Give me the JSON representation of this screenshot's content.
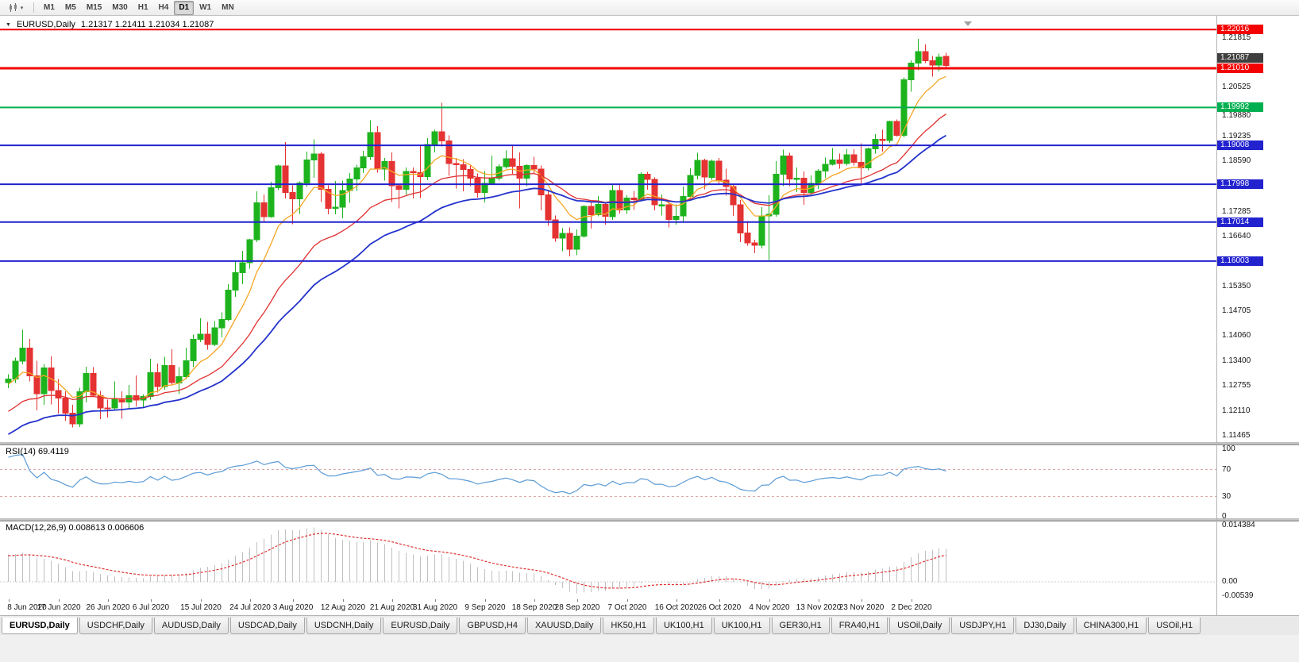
{
  "toolbar": {
    "timeframes": [
      "M1",
      "M5",
      "M15",
      "M30",
      "H1",
      "H4",
      "D1",
      "W1",
      "MN"
    ],
    "active_timeframe": "D1"
  },
  "chart": {
    "title": "EURUSD,Daily",
    "ohlc": "1.21317 1.21411 1.21034 1.21087"
  },
  "colors": {
    "bull": "#1db31d",
    "bear": "#e53232",
    "ma_fast": "#f5a623",
    "ma_mid": "#e03030",
    "ma_slow": "#2433cc",
    "line_red": "#f40000",
    "line_green": "#00b050",
    "line_blue": "#2222cf",
    "rsi": "#5b9bd5",
    "rsi_level": "#dcaaaa",
    "macd_hist": "#c0c0c0",
    "macd_signal": "#e03030",
    "current_label_bg": "#3f3f3f"
  },
  "chart_data": {
    "type": "candlestick",
    "symbol": "EURUSD",
    "timeframe": "Daily",
    "last_ohlc": {
      "open": "1.21317",
      "high": "1.21411",
      "low": "1.21034",
      "close": "1.21087"
    },
    "candles": [
      [
        1.1285,
        1.1306,
        1.127,
        1.1294
      ],
      [
        1.1294,
        1.1349,
        1.1284,
        1.134
      ],
      [
        1.134,
        1.1422,
        1.1332,
        1.1374
      ],
      [
        1.1374,
        1.1398,
        1.1288,
        1.1302
      ],
      [
        1.1302,
        1.1341,
        1.1212,
        1.1256
      ],
      [
        1.1256,
        1.1333,
        1.1227,
        1.1323
      ],
      [
        1.1323,
        1.1353,
        1.1228,
        1.1264
      ],
      [
        1.1264,
        1.1294,
        1.1204,
        1.1244
      ],
      [
        1.1244,
        1.1262,
        1.1186,
        1.1205
      ],
      [
        1.1205,
        1.1227,
        1.1168,
        1.1177
      ],
      [
        1.1177,
        1.1271,
        1.1169,
        1.1261
      ],
      [
        1.1261,
        1.1326,
        1.1233,
        1.1308
      ],
      [
        1.1308,
        1.1325,
        1.1248,
        1.1251
      ],
      [
        1.1251,
        1.1263,
        1.119,
        1.1219
      ],
      [
        1.1219,
        1.124,
        1.1194,
        1.1218
      ],
      [
        1.1218,
        1.1288,
        1.1214,
        1.1242
      ],
      [
        1.1242,
        1.1262,
        1.1191,
        1.1234
      ],
      [
        1.1234,
        1.1278,
        1.1218,
        1.1251
      ],
      [
        1.1251,
        1.1303,
        1.1223,
        1.1239
      ],
      [
        1.1239,
        1.1254,
        1.1219,
        1.1248
      ],
      [
        1.1248,
        1.1346,
        1.124,
        1.131
      ],
      [
        1.131,
        1.1334,
        1.1259,
        1.1274
      ],
      [
        1.1274,
        1.1352,
        1.1266,
        1.1329
      ],
      [
        1.1329,
        1.1371,
        1.1277,
        1.1284
      ],
      [
        1.1284,
        1.1325,
        1.1255,
        1.13
      ],
      [
        1.13,
        1.1375,
        1.1294,
        1.1341
      ],
      [
        1.1341,
        1.1409,
        1.1325,
        1.1397
      ],
      [
        1.1397,
        1.1452,
        1.139,
        1.141
      ],
      [
        1.141,
        1.1442,
        1.137,
        1.1384
      ],
      [
        1.1384,
        1.1444,
        1.1379,
        1.1427
      ],
      [
        1.1427,
        1.1467,
        1.1402,
        1.1448
      ],
      [
        1.1448,
        1.154,
        1.1444,
        1.1525
      ],
      [
        1.1525,
        1.1601,
        1.1507,
        1.157
      ],
      [
        1.157,
        1.1627,
        1.154,
        1.1596
      ],
      [
        1.1596,
        1.1658,
        1.158,
        1.1656
      ],
      [
        1.1656,
        1.1781,
        1.165,
        1.1752
      ],
      [
        1.1752,
        1.1773,
        1.17,
        1.1716
      ],
      [
        1.1716,
        1.1806,
        1.1712,
        1.1791
      ],
      [
        1.1791,
        1.1851,
        1.1785,
        1.1847
      ],
      [
        1.1847,
        1.1909,
        1.1763,
        1.1778
      ],
      [
        1.1778,
        1.1797,
        1.1696,
        1.1762
      ],
      [
        1.1762,
        1.1807,
        1.1723,
        1.1803
      ],
      [
        1.1803,
        1.1885,
        1.1793,
        1.1863
      ],
      [
        1.1863,
        1.1917,
        1.1817,
        1.1878
      ],
      [
        1.1878,
        1.1884,
        1.1754,
        1.1787
      ],
      [
        1.1787,
        1.1797,
        1.1722,
        1.1737
      ],
      [
        1.1737,
        1.1808,
        1.1722,
        1.174
      ],
      [
        1.174,
        1.1809,
        1.1711,
        1.1784
      ],
      [
        1.1784,
        1.1829,
        1.1752,
        1.1813
      ],
      [
        1.1813,
        1.1851,
        1.1782,
        1.1842
      ],
      [
        1.1842,
        1.1887,
        1.1829,
        1.1871
      ],
      [
        1.1871,
        1.1966,
        1.1863,
        1.1934
      ],
      [
        1.1934,
        1.1951,
        1.183,
        1.1839
      ],
      [
        1.1839,
        1.1868,
        1.1809,
        1.1859
      ],
      [
        1.1859,
        1.1882,
        1.1754,
        1.1796
      ],
      [
        1.1796,
        1.1801,
        1.1737,
        1.1787
      ],
      [
        1.1787,
        1.1843,
        1.1772,
        1.1833
      ],
      [
        1.1833,
        1.1843,
        1.1763,
        1.183
      ],
      [
        1.183,
        1.1902,
        1.1764,
        1.182
      ],
      [
        1.182,
        1.192,
        1.181,
        1.1903
      ],
      [
        1.1903,
        1.1941,
        1.1883,
        1.1936
      ],
      [
        1.1936,
        1.2011,
        1.1898,
        1.1912
      ],
      [
        1.1912,
        1.1927,
        1.1822,
        1.1854
      ],
      [
        1.1854,
        1.1868,
        1.1789,
        1.1851
      ],
      [
        1.1851,
        1.1865,
        1.1781,
        1.1838
      ],
      [
        1.1838,
        1.1849,
        1.1795,
        1.1816
      ],
      [
        1.1816,
        1.1828,
        1.1765,
        1.1778
      ],
      [
        1.1778,
        1.1834,
        1.1753,
        1.1802
      ],
      [
        1.1802,
        1.1874,
        1.1799,
        1.1816
      ],
      [
        1.1816,
        1.1852,
        1.1809,
        1.1845
      ],
      [
        1.1845,
        1.1888,
        1.184,
        1.1866
      ],
      [
        1.1866,
        1.1901,
        1.1827,
        1.1846
      ],
      [
        1.1846,
        1.1882,
        1.1737,
        1.1815
      ],
      [
        1.1815,
        1.1852,
        1.1795,
        1.1848
      ],
      [
        1.1848,
        1.1871,
        1.1827,
        1.1839
      ],
      [
        1.1839,
        1.1848,
        1.1732,
        1.1772
      ],
      [
        1.1772,
        1.1785,
        1.1692,
        1.1707
      ],
      [
        1.1707,
        1.1719,
        1.1651,
        1.166
      ],
      [
        1.166,
        1.1686,
        1.1626,
        1.1672
      ],
      [
        1.1672,
        1.1688,
        1.1612,
        1.1631
      ],
      [
        1.1631,
        1.1683,
        1.1615,
        1.1665
      ],
      [
        1.1665,
        1.1745,
        1.1661,
        1.1742
      ],
      [
        1.1742,
        1.1755,
        1.1685,
        1.1721
      ],
      [
        1.1721,
        1.1769,
        1.1717,
        1.1747
      ],
      [
        1.1747,
        1.1751,
        1.1695,
        1.1716
      ],
      [
        1.1716,
        1.1798,
        1.1707,
        1.1784
      ],
      [
        1.1784,
        1.1798,
        1.1724,
        1.1733
      ],
      [
        1.1733,
        1.1771,
        1.1723,
        1.1764
      ],
      [
        1.1764,
        1.1782,
        1.1733,
        1.176
      ],
      [
        1.176,
        1.1831,
        1.1755,
        1.1826
      ],
      [
        1.1826,
        1.1832,
        1.1786,
        1.1812
      ],
      [
        1.1812,
        1.1818,
        1.1732,
        1.1746
      ],
      [
        1.1746,
        1.1773,
        1.1719,
        1.1746
      ],
      [
        1.1746,
        1.1757,
        1.1688,
        1.1708
      ],
      [
        1.1708,
        1.1747,
        1.1695,
        1.1717
      ],
      [
        1.1717,
        1.1794,
        1.1703,
        1.1768
      ],
      [
        1.1768,
        1.1841,
        1.176,
        1.1823
      ],
      [
        1.1823,
        1.1881,
        1.1812,
        1.1862
      ],
      [
        1.1862,
        1.1866,
        1.1787,
        1.1818
      ],
      [
        1.1818,
        1.1864,
        1.1811,
        1.186
      ],
      [
        1.186,
        1.1868,
        1.18,
        1.181
      ],
      [
        1.181,
        1.184,
        1.177,
        1.1794
      ],
      [
        1.1794,
        1.18,
        1.1718,
        1.1746
      ],
      [
        1.1746,
        1.1759,
        1.165,
        1.1673
      ],
      [
        1.1673,
        1.1704,
        1.164,
        1.1647
      ],
      [
        1.1647,
        1.1656,
        1.1621,
        1.1641
      ],
      [
        1.1641,
        1.174,
        1.1633,
        1.1717
      ],
      [
        1.1717,
        1.1771,
        1.1603,
        1.1722
      ],
      [
        1.1722,
        1.186,
        1.1715,
        1.1826
      ],
      [
        1.1826,
        1.189,
        1.1795,
        1.1873
      ],
      [
        1.1873,
        1.1881,
        1.1795,
        1.1813
      ],
      [
        1.1813,
        1.1843,
        1.1779,
        1.1816
      ],
      [
        1.1816,
        1.1833,
        1.1746,
        1.1778
      ],
      [
        1.1778,
        1.1823,
        1.1771,
        1.1802
      ],
      [
        1.1802,
        1.1839,
        1.1788,
        1.1834
      ],
      [
        1.1834,
        1.1869,
        1.1815,
        1.1852
      ],
      [
        1.1852,
        1.1894,
        1.1849,
        1.1863
      ],
      [
        1.1863,
        1.1879,
        1.184,
        1.1854
      ],
      [
        1.1854,
        1.1892,
        1.1848,
        1.1876
      ],
      [
        1.1876,
        1.1891,
        1.1849,
        1.1857
      ],
      [
        1.1857,
        1.1906,
        1.18,
        1.1842
      ],
      [
        1.1842,
        1.1895,
        1.1836,
        1.1892
      ],
      [
        1.1892,
        1.193,
        1.1879,
        1.1917
      ],
      [
        1.1917,
        1.1941,
        1.1885,
        1.1914
      ],
      [
        1.1914,
        1.1965,
        1.1907,
        1.1963
      ],
      [
        1.1963,
        1.1968,
        1.1924,
        1.1927
      ],
      [
        1.1927,
        1.2077,
        1.1922,
        1.2071
      ],
      [
        1.2071,
        1.2122,
        1.204,
        1.2115
      ],
      [
        1.2115,
        1.2177,
        1.2096,
        1.2144
      ],
      [
        1.2144,
        1.2163,
        1.2115,
        1.2121
      ],
      [
        1.2121,
        1.2133,
        1.2079,
        1.2109
      ],
      [
        1.2109,
        1.2139,
        1.2093,
        1.213
      ],
      [
        1.21317,
        1.21411,
        1.21034,
        1.21087
      ]
    ],
    "date_labels": [
      {
        "text": "8 Jun 2020",
        "bar": 0
      },
      {
        "text": "17 Jun 2020",
        "bar": 7
      },
      {
        "text": "26 Jun 2020",
        "bar": 14
      },
      {
        "text": "6 Jul 2020",
        "bar": 20
      },
      {
        "text": "15 Jul 2020",
        "bar": 27
      },
      {
        "text": "24 Jul 2020",
        "bar": 34
      },
      {
        "text": "3 Aug 2020",
        "bar": 40
      },
      {
        "text": "12 Aug 2020",
        "bar": 47
      },
      {
        "text": "21 Aug 2020",
        "bar": 54
      },
      {
        "text": "31 Aug 2020",
        "bar": 60
      },
      {
        "text": "9 Sep 2020",
        "bar": 67
      },
      {
        "text": "18 Sep 2020",
        "bar": 74
      },
      {
        "text": "28 Sep 2020",
        "bar": 80
      },
      {
        "text": "7 Oct 2020",
        "bar": 87
      },
      {
        "text": "16 Oct 2020",
        "bar": 94
      },
      {
        "text": "26 Oct 2020",
        "bar": 100
      },
      {
        "text": "4 Nov 2020",
        "bar": 107
      },
      {
        "text": "13 Nov 2020",
        "bar": 114
      },
      {
        "text": "23 Nov 2020",
        "bar": 120
      },
      {
        "text": "2 Dec 2020",
        "bar": 127
      }
    ],
    "price_axis": {
      "labels": [
        "1.21815",
        "1.20525",
        "1.19880",
        "1.19235",
        "1.18590",
        "1.17285",
        "1.16640",
        "1.15350",
        "1.14705",
        "1.14060",
        "1.13400",
        "1.12755",
        "1.12110",
        "1.11465"
      ],
      "line_labels": [
        {
          "text": "1.22016",
          "price": 1.22016,
          "color": "red"
        },
        {
          "text": "1.21010",
          "price": 1.2101,
          "color": "red"
        },
        {
          "text": "1.19992",
          "price": 1.19992,
          "color": "green"
        },
        {
          "text": "1.19008",
          "price": 1.19008,
          "color": "blue"
        },
        {
          "text": "1.17998",
          "price": 1.17998,
          "color": "blue"
        },
        {
          "text": "1.17014",
          "price": 1.17014,
          "color": "blue"
        },
        {
          "text": "1.16003",
          "price": 1.16003,
          "color": "blue"
        }
      ],
      "current": {
        "text": "1.21087",
        "price": 1.21087
      }
    },
    "horizontal_lines": [
      {
        "price": 1.22016,
        "color": "red",
        "width": 2
      },
      {
        "price": 1.2101,
        "color": "red",
        "width": 3
      },
      {
        "price": 1.19992,
        "color": "green",
        "width": 2
      },
      {
        "price": 1.19008,
        "color": "blue",
        "width": 2
      },
      {
        "price": 1.17998,
        "color": "blue",
        "width": 2
      },
      {
        "price": 1.17014,
        "color": "blue",
        "width": 2
      },
      {
        "price": 1.16003,
        "color": "blue",
        "width": 2
      }
    ],
    "moving_averages": [
      {
        "name": "fast",
        "type": "ema",
        "period": 8,
        "color_key": "ma_fast",
        "width": 1.3
      },
      {
        "name": "mid",
        "type": "ema",
        "period": 21,
        "color_key": "ma_mid",
        "width": 1.3
      },
      {
        "name": "slow",
        "type": "ema",
        "period": 34,
        "color_key": "ma_slow",
        "width": 1.8
      }
    ],
    "indicators": {
      "rsi": {
        "label": "RSI(14) 69.4119",
        "period": 14,
        "levels": [
          70,
          30
        ],
        "axis_labels": [
          {
            "text": "100",
            "value": 100
          },
          {
            "text": "70",
            "value": 70
          },
          {
            "text": "30",
            "value": 30
          },
          {
            "text": "0",
            "value": 0
          }
        ]
      },
      "macd": {
        "label": "MACD(12,26,9) 0.008613 0.006606",
        "fast": 12,
        "slow": 26,
        "signal": 9,
        "axis_top_label": "0.014384",
        "axis_zero_label": "0.00",
        "axis_bottom_label": "-0.00539"
      }
    }
  },
  "tabs": [
    {
      "label": "EURUSD,Daily",
      "active": true
    },
    {
      "label": "USDCHF,Daily",
      "active": false
    },
    {
      "label": "AUDUSD,Daily",
      "active": false
    },
    {
      "label": "USDCAD,Daily",
      "active": false
    },
    {
      "label": "USDCNH,Daily",
      "active": false
    },
    {
      "label": "EURUSD,Daily",
      "active": false
    },
    {
      "label": "GBPUSD,H4",
      "active": false
    },
    {
      "label": "XAUUSD,Daily",
      "active": false
    },
    {
      "label": "HK50,H1",
      "active": false
    },
    {
      "label": "UK100,H1",
      "active": false
    },
    {
      "label": "UK100,H1",
      "active": false
    },
    {
      "label": "GER30,H1",
      "active": false
    },
    {
      "label": "FRA40,H1",
      "active": false
    },
    {
      "label": "USOil,Daily",
      "active": false
    },
    {
      "label": "USDJPY,H1",
      "active": false
    },
    {
      "label": "DJ30,Daily",
      "active": false
    },
    {
      "label": "CHINA300,H1",
      "active": false
    },
    {
      "label": "USOil,H1",
      "active": false
    }
  ]
}
